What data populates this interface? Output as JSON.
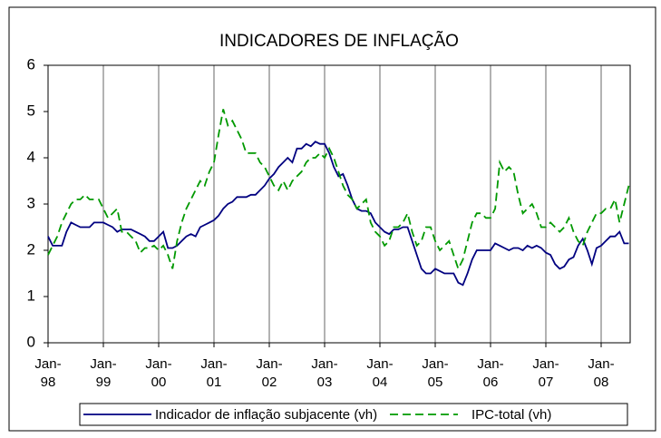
{
  "chart_data": {
    "type": "line",
    "title": "INDICADORES DE INFLAÇÃO",
    "categories": [
      "Jan-98",
      null,
      null,
      null,
      null,
      null,
      null,
      null,
      null,
      null,
      null,
      null,
      "Jan-99",
      null,
      null,
      null,
      null,
      null,
      null,
      null,
      null,
      null,
      null,
      null,
      "Jan-00",
      null,
      null,
      null,
      null,
      null,
      null,
      null,
      null,
      null,
      null,
      null,
      "Jan-01",
      null,
      null,
      null,
      null,
      null,
      null,
      null,
      null,
      null,
      null,
      null,
      "Jan-02",
      null,
      null,
      null,
      null,
      null,
      null,
      null,
      null,
      null,
      null,
      null,
      "Jan-03",
      null,
      null,
      null,
      null,
      null,
      null,
      null,
      null,
      null,
      null,
      null,
      "Jan-04",
      null,
      null,
      null,
      null,
      null,
      null,
      null,
      null,
      null,
      null,
      null,
      "Jan-05",
      null,
      null,
      null,
      null,
      null,
      null,
      null,
      null,
      null,
      null,
      null,
      "Jan-06",
      null,
      null,
      null,
      null,
      null,
      null,
      null,
      null,
      null,
      null,
      null,
      "Jan-07",
      null,
      null,
      null,
      null,
      null,
      null,
      null,
      null,
      null,
      null,
      null,
      "Jan-08",
      null,
      null,
      null,
      null,
      null,
      null
    ],
    "series": [
      {
        "name": "Indicador de inflação subjacente (vh)",
        "color": "#000080",
        "dash": false,
        "values": [
          2.3,
          2.1,
          2.1,
          2.1,
          2.4,
          2.6,
          2.55,
          2.5,
          2.5,
          2.5,
          2.6,
          2.6,
          2.6,
          2.55,
          2.5,
          2.4,
          2.45,
          2.45,
          2.45,
          2.4,
          2.35,
          2.3,
          2.2,
          2.2,
          2.3,
          2.4,
          2.05,
          2.05,
          2.1,
          2.2,
          2.3,
          2.35,
          2.3,
          2.5,
          2.55,
          2.6,
          2.65,
          2.75,
          2.9,
          3.0,
          3.05,
          3.15,
          3.15,
          3.15,
          3.2,
          3.2,
          3.3,
          3.4,
          3.55,
          3.65,
          3.8,
          3.9,
          4.0,
          3.9,
          4.2,
          4.2,
          4.3,
          4.25,
          4.35,
          4.3,
          4.3,
          4.1,
          3.8,
          3.6,
          3.65,
          3.4,
          3.1,
          2.9,
          2.85,
          2.85,
          2.8,
          2.6,
          2.5,
          2.4,
          2.35,
          2.45,
          2.45,
          2.5,
          2.5,
          2.2,
          1.9,
          1.6,
          1.5,
          1.5,
          1.6,
          1.55,
          1.5,
          1.5,
          1.5,
          1.3,
          1.25,
          1.5,
          1.8,
          2.0,
          2.0,
          2.0,
          2.0,
          2.15,
          2.1,
          2.05,
          2.0,
          2.05,
          2.05,
          2.0,
          2.1,
          2.05,
          2.1,
          2.05,
          1.95,
          1.9,
          1.7,
          1.6,
          1.65,
          1.8,
          1.85,
          2.1,
          2.25,
          2.0,
          1.7,
          2.05,
          2.1,
          2.2,
          2.3,
          2.3,
          2.4,
          2.15,
          2.15
        ]
      },
      {
        "name": "IPC-total (vh)",
        "color": "#009900",
        "dash": true,
        "values": [
          1.9,
          2.1,
          2.3,
          2.6,
          2.8,
          3.0,
          3.1,
          3.1,
          3.2,
          3.1,
          3.1,
          3.1,
          2.9,
          2.7,
          2.8,
          2.9,
          2.4,
          2.4,
          2.3,
          2.2,
          1.95,
          2.05,
          2.05,
          2.1,
          2.0,
          2.1,
          1.9,
          1.6,
          2.2,
          2.6,
          2.9,
          3.1,
          3.3,
          3.5,
          3.4,
          3.7,
          3.9,
          4.5,
          5.05,
          4.7,
          4.8,
          4.6,
          4.4,
          4.1,
          4.1,
          4.1,
          3.9,
          3.8,
          3.6,
          3.4,
          3.3,
          3.5,
          3.3,
          3.5,
          3.6,
          3.7,
          3.9,
          4.0,
          4.0,
          4.1,
          4.0,
          4.2,
          4.0,
          3.7,
          3.4,
          3.2,
          3.1,
          2.9,
          3.0,
          3.1,
          2.6,
          2.4,
          2.3,
          2.1,
          2.2,
          2.5,
          2.5,
          2.6,
          2.8,
          2.4,
          2.1,
          2.2,
          2.5,
          2.5,
          2.2,
          2.0,
          2.1,
          2.2,
          1.9,
          1.6,
          1.8,
          2.2,
          2.6,
          2.8,
          2.8,
          2.7,
          2.7,
          2.9,
          3.9,
          3.7,
          3.8,
          3.7,
          3.2,
          2.8,
          2.9,
          3.0,
          2.8,
          2.5,
          2.5,
          2.6,
          2.5,
          2.4,
          2.5,
          2.7,
          2.4,
          2.2,
          2.1,
          2.4,
          2.6,
          2.8,
          2.8,
          2.9,
          2.9,
          3.1,
          2.6,
          3.0,
          3.4
        ]
      }
    ],
    "ylim": [
      0,
      6
    ],
    "yticks": [
      0,
      1,
      2,
      3,
      4,
      5,
      6
    ],
    "grid": false,
    "legend": "bottom"
  }
}
